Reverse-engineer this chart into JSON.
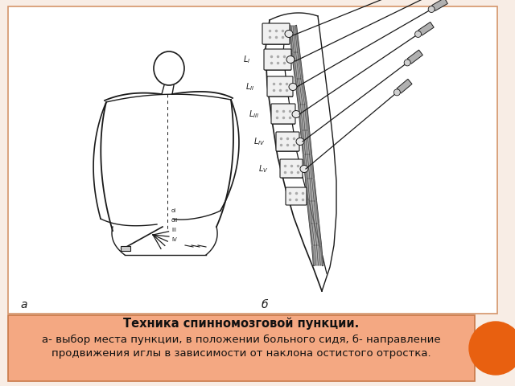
{
  "bg_color": "#f0c0a0",
  "slide_bg": "#f8ede5",
  "content_box_color": "#ffffff",
  "content_box_border": "#d4956a",
  "text_box_color": "#f4a882",
  "text_box_border": "#c87848",
  "orange_circle_color": "#e86010",
  "title_text": "Техника спинномозговой пункции.",
  "subtitle_line1": "а- выбор места пункции, в положении больного сидя, б- направление",
  "subtitle_line2": "продвижения иглы в зависимости от наклона остистого отростка.",
  "label_a": "а",
  "label_b": "б",
  "title_fontsize": 10.5,
  "subtitle_fontsize": 9.5
}
